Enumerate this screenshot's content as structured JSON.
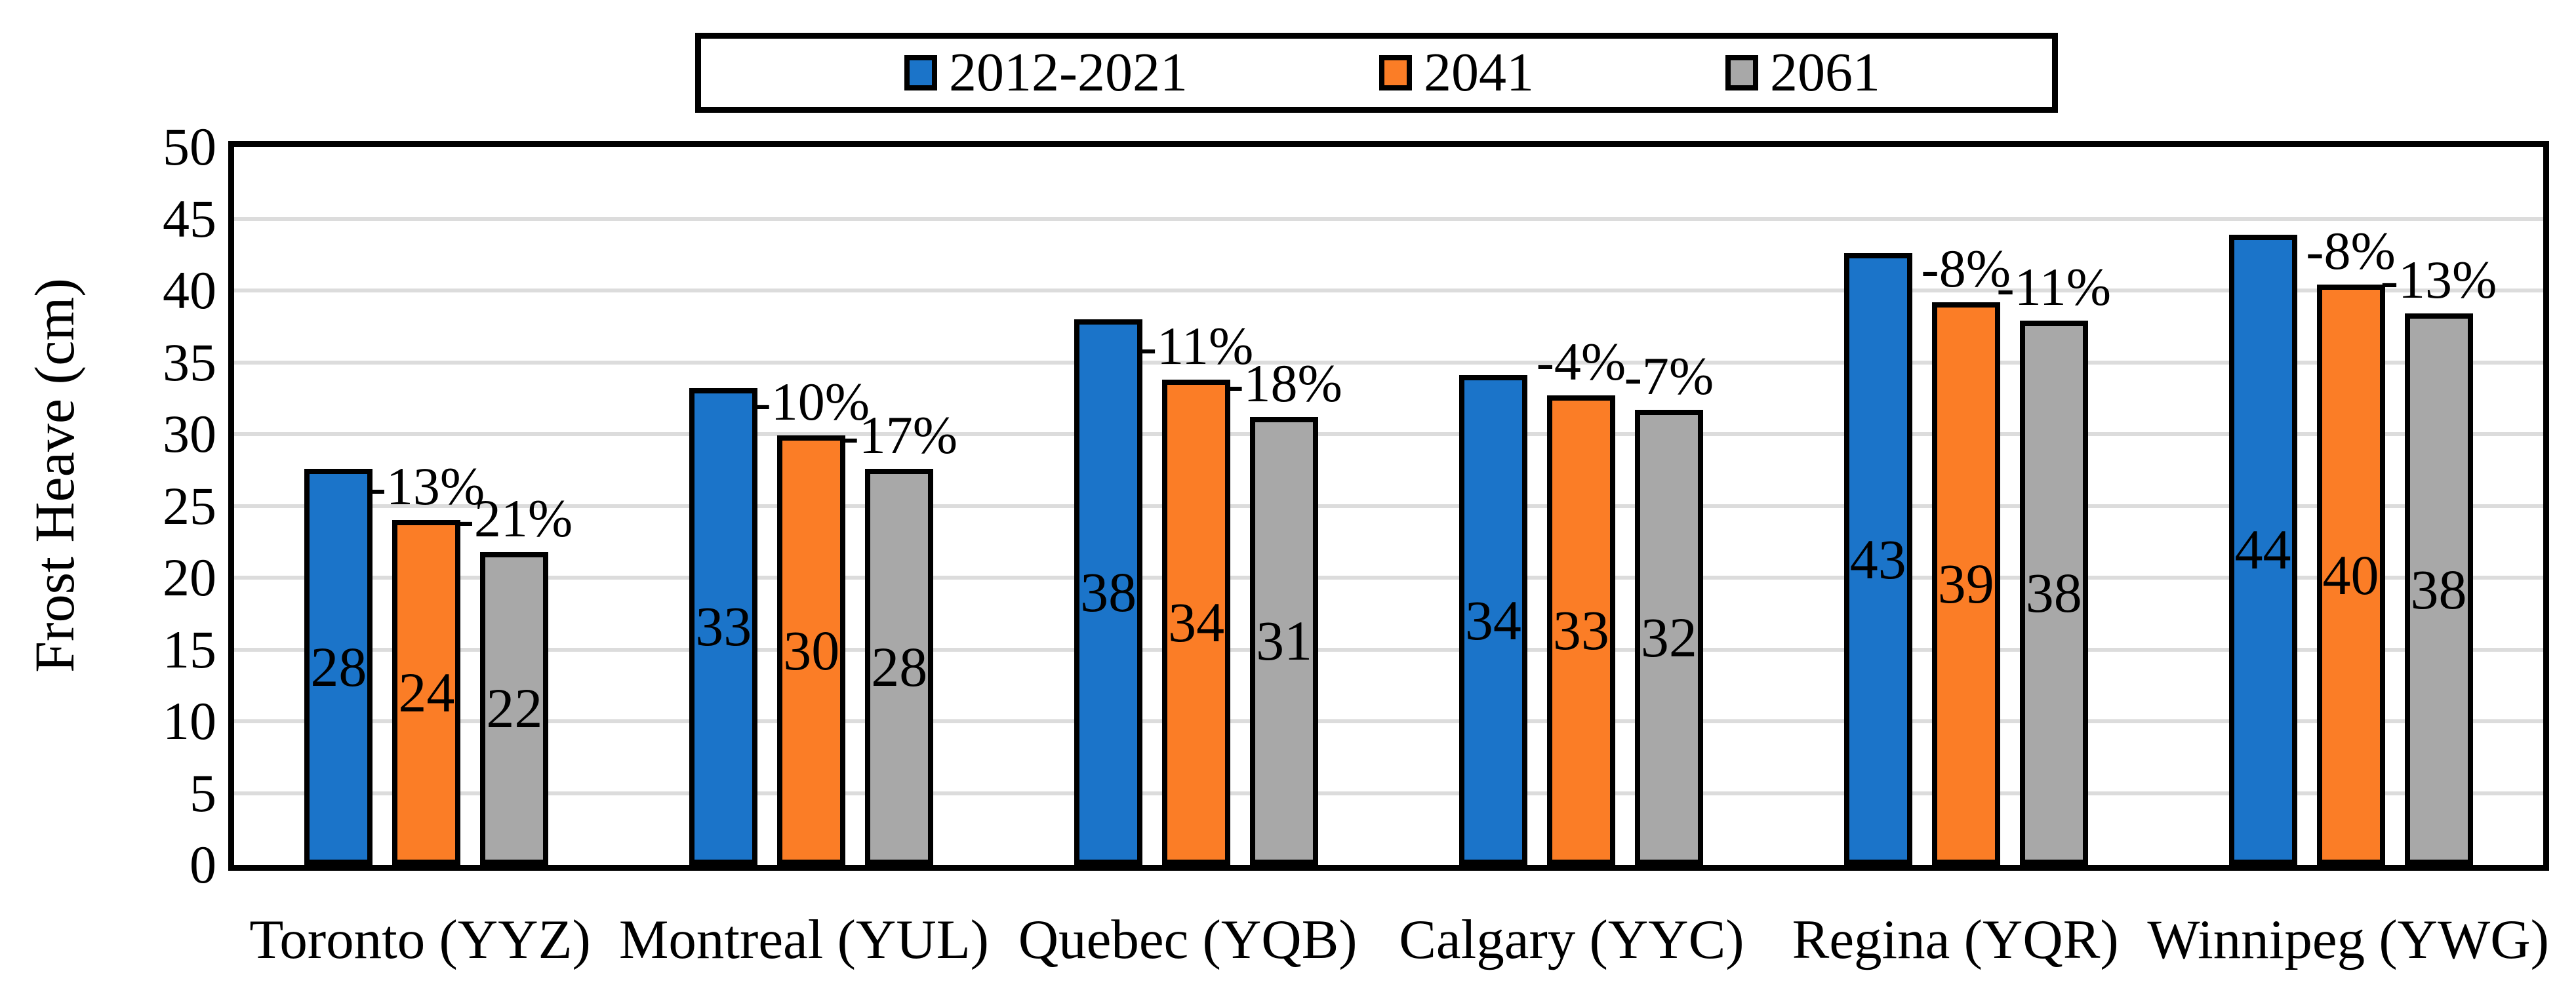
{
  "chart_data": {
    "type": "bar",
    "title": "",
    "ylabel": "Frost Heave (cm)",
    "xlabel": "",
    "ylim": [
      0,
      50
    ],
    "ytick_step": 5,
    "grid": true,
    "legend_position": "top-center",
    "categories": [
      "Toronto (YYZ)",
      "Montreal (YUL)",
      "Quebec (YQB)",
      "Calgary (YYC)",
      "Regina (YQR)",
      "Winnipeg (YWG)"
    ],
    "series": [
      {
        "name": "2012-2021",
        "color": "#1B74C9",
        "values": [
          28,
          33,
          38,
          34,
          43,
          44
        ],
        "bar_heights": [
          27.6,
          33.2,
          38.0,
          34.1,
          42.6,
          43.9
        ],
        "pct_change_labels": [
          null,
          null,
          null,
          null,
          null,
          null
        ]
      },
      {
        "name": "2041",
        "color": "#FB7D26",
        "values": [
          24,
          30,
          34,
          33,
          39,
          40
        ],
        "bar_heights": [
          24.0,
          29.9,
          33.8,
          32.7,
          39.2,
          40.4
        ],
        "pct_change_labels": [
          "-13%",
          "-10%",
          "-11%",
          "-4%",
          "-8%",
          "-8%"
        ]
      },
      {
        "name": "2061",
        "color": "#A8A8A8",
        "values": [
          22,
          28,
          31,
          32,
          38,
          38
        ],
        "bar_heights": [
          21.8,
          27.6,
          31.2,
          31.7,
          37.9,
          38.4
        ],
        "pct_change_labels": [
          "-21%",
          "-17%",
          "-18%",
          "-7%",
          "-11%",
          "-13%"
        ]
      }
    ],
    "colors": {
      "axis": "#000000",
      "bar_outline": "#000000",
      "gridline": "#DCDCDC",
      "background": "#FFFFFF"
    }
  }
}
